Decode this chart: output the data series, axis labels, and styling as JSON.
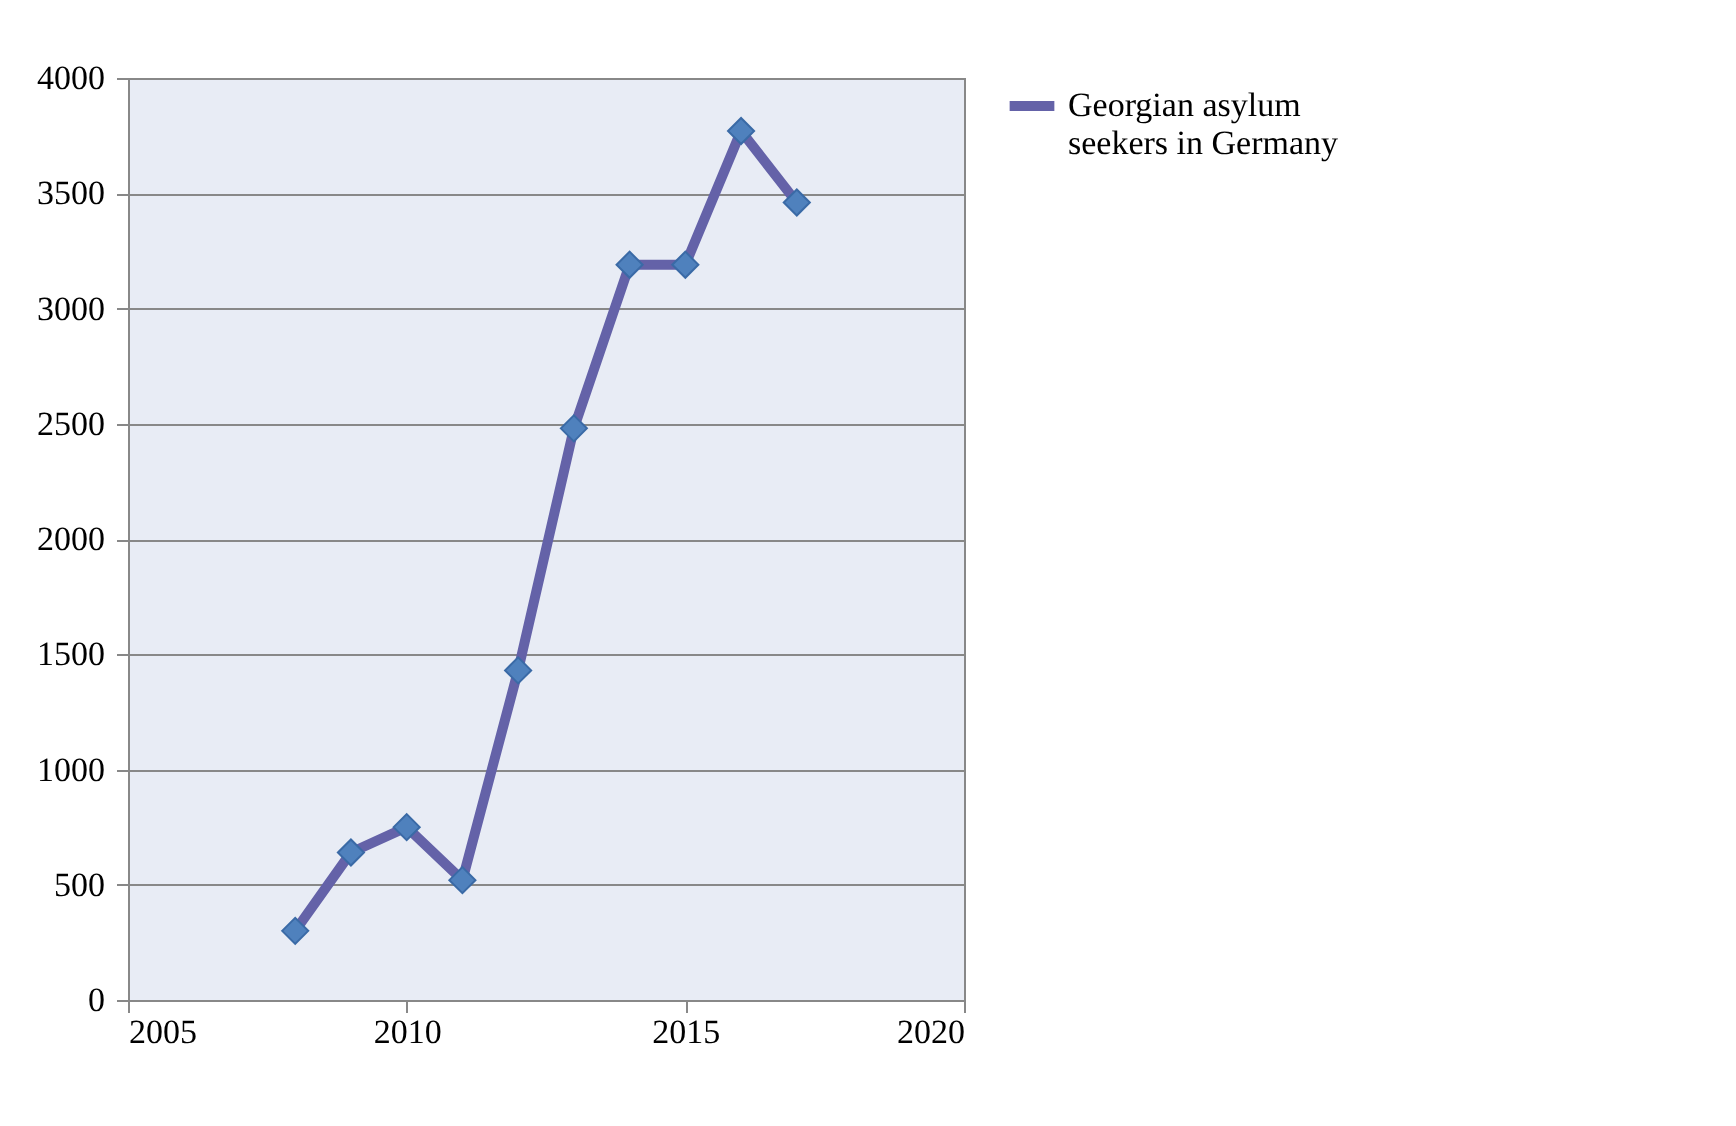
{
  "chart_data": {
    "type": "line",
    "x": [
      2008,
      2009,
      2010,
      2011,
      2012,
      2013,
      2014,
      2015,
      2016,
      2017
    ],
    "series": [
      {
        "name": "Georgian asylum seekers in Germany",
        "color": "#6462a8",
        "values": [
          300,
          640,
          750,
          520,
          1430,
          2480,
          3190,
          3190,
          3770,
          3460
        ]
      }
    ],
    "xlim": [
      2005,
      2020
    ],
    "xticks": [
      2005,
      2010,
      2015,
      2020
    ],
    "ylim": [
      0,
      4000
    ],
    "yticks": [
      0,
      500,
      1000,
      1500,
      2000,
      2500,
      3000,
      3500,
      4000
    ],
    "grid": "y",
    "legend": "right",
    "marker": "diamond",
    "line_style": "solid"
  }
}
